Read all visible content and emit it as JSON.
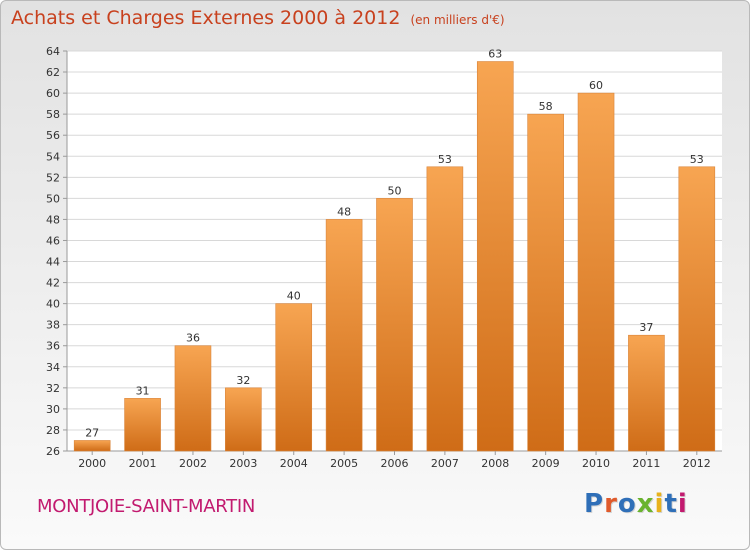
{
  "title": {
    "main": "Achats et Charges Externes 2000 à 2012",
    "unit": "(en milliers d'€)"
  },
  "commune": "MONTJOIE-SAINT-MARTIN",
  "logo": {
    "text": "Proxiti",
    "colors": [
      "#2f6fb8",
      "#e05a2b",
      "#2f6fb8",
      "#6ab32e",
      "#e8b21c",
      "#2f6fb8",
      "#c21a6f"
    ]
  },
  "colors": {
    "title": "#c8411e",
    "commune": "#c21a6f",
    "bar_top": "#f7a552",
    "bar_bottom": "#cf6c17",
    "grid": "#d8d8d8"
  },
  "chart_data": {
    "type": "bar",
    "categories": [
      "2000",
      "2001",
      "2002",
      "2003",
      "2004",
      "2005",
      "2006",
      "2007",
      "2008",
      "2009",
      "2010",
      "2011",
      "2012"
    ],
    "values": [
      27,
      31,
      36,
      32,
      40,
      48,
      50,
      53,
      63,
      58,
      60,
      37,
      53
    ],
    "ylim": [
      26,
      64
    ],
    "ytick_step": 2,
    "grid": true,
    "xlabel": "",
    "ylabel": ""
  }
}
